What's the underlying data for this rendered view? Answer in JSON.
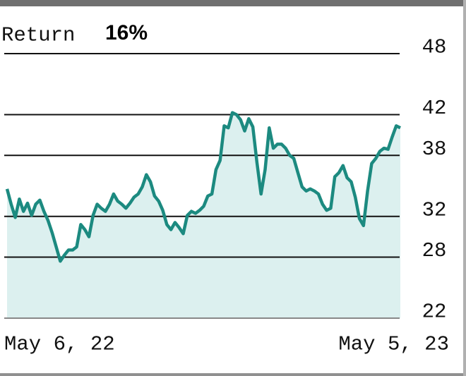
{
  "chart_data": {
    "type": "area",
    "title": "Return",
    "title_value": "16%",
    "categories": [
      "May 6, 22",
      null,
      null,
      null,
      null,
      null,
      null,
      null,
      null,
      null,
      null,
      null,
      null,
      null,
      null,
      null,
      null,
      null,
      null,
      null,
      null,
      null,
      null,
      null,
      null,
      null,
      null,
      null,
      null,
      null,
      null,
      null,
      null,
      null,
      null,
      null,
      null,
      null,
      null,
      null,
      null,
      null,
      null,
      null,
      null,
      null,
      null,
      null,
      null,
      null,
      null,
      null,
      null,
      null,
      null,
      null,
      null,
      null,
      null,
      null,
      null,
      null,
      null,
      null,
      null,
      null,
      null,
      null,
      null,
      null,
      null,
      null,
      null,
      null,
      null,
      null,
      null,
      null,
      null,
      null,
      null,
      null,
      null,
      null,
      null,
      null,
      null,
      null,
      null,
      null,
      null,
      null,
      null,
      null,
      null,
      null,
      "May 5, 23"
    ],
    "values": [
      34.7,
      33.2,
      31.9,
      33.7,
      32.5,
      33.3,
      32.1,
      33.2,
      33.6,
      32.5,
      31.6,
      30.4,
      29.0,
      27.6,
      28.2,
      28.7,
      28.7,
      29.0,
      31.2,
      30.7,
      30.0,
      32.1,
      33.2,
      32.8,
      32.5,
      33.2,
      34.2,
      33.5,
      33.2,
      32.8,
      33.3,
      33.9,
      34.2,
      34.9,
      36.1,
      35.4,
      34.0,
      33.5,
      32.6,
      31.2,
      30.7,
      31.4,
      30.9,
      30.3,
      32.1,
      32.5,
      32.3,
      32.6,
      33.0,
      34.0,
      34.2,
      36.6,
      37.5,
      40.9,
      40.7,
      42.2,
      42.0,
      41.5,
      40.4,
      41.6,
      40.8,
      37.3,
      34.2,
      36.6,
      40.7,
      38.7,
      39.1,
      39.1,
      38.7,
      38.0,
      37.7,
      36.3,
      34.9,
      34.5,
      34.7,
      34.5,
      34.2,
      33.2,
      32.6,
      32.8,
      35.9,
      36.3,
      37.0,
      35.8,
      35.4,
      33.9,
      31.8,
      31.1,
      34.5,
      37.2,
      37.7,
      38.4,
      38.7,
      38.6,
      39.8,
      40.9,
      40.7
    ],
    "color": "#1c8a80",
    "fill": "#dcf0ef",
    "ylim": [
      22,
      48
    ],
    "yticks": [
      48,
      42,
      38,
      32,
      28,
      22
    ],
    "grid": true
  }
}
